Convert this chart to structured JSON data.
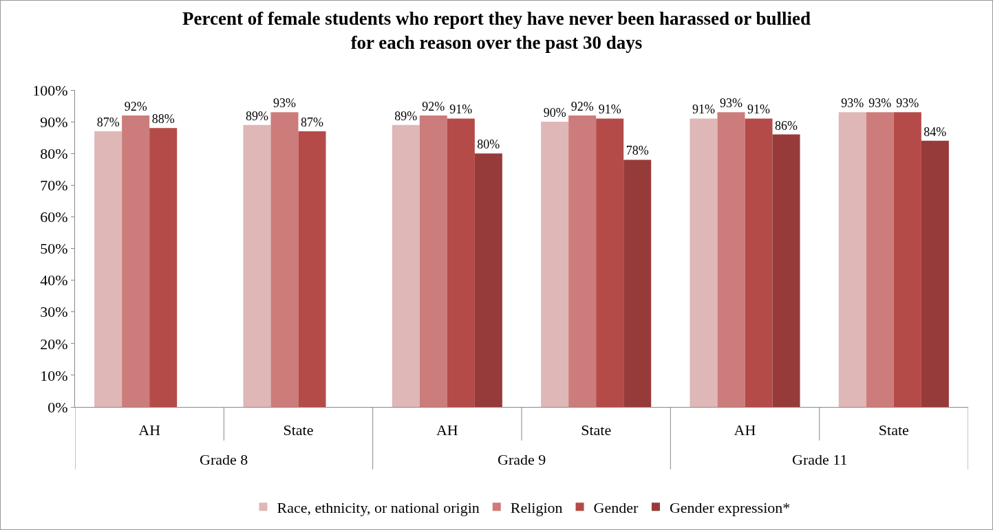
{
  "chart_data": {
    "type": "bar",
    "title": "Percent of female students who report they have never been harassed or bullied\nfor each reason over the past 30 days",
    "categories": [
      "AH",
      "State",
      "AH",
      "State",
      "AH",
      "State"
    ],
    "annotations": [
      "Grade 8",
      "Grade 9",
      "Grade 11"
    ],
    "series": [
      {
        "name": "Race, ethnicity, or national origin",
        "color": "#dfb7b7",
        "values": [
          87,
          89,
          89,
          90,
          91,
          93
        ],
        "value_labels": [
          "87%",
          "89%",
          "89%",
          "90%",
          "91%",
          "93%"
        ]
      },
      {
        "name": "Religion",
        "color": "#cc7c7a",
        "values": [
          92,
          93,
          92,
          92,
          93,
          93
        ],
        "value_labels": [
          "92%",
          "93%",
          "92%",
          "92%",
          "93%",
          "93%"
        ]
      },
      {
        "name": "Gender",
        "color": "#b44b48",
        "values": [
          88,
          87,
          91,
          91,
          91,
          93
        ],
        "value_labels": [
          "88%",
          "87%",
          "91%",
          "91%",
          "91%",
          "93%"
        ]
      },
      {
        "name": "Gender expression*",
        "color": "#973b3a",
        "values": [
          null,
          null,
          80,
          78,
          86,
          84
        ],
        "value_labels": [
          null,
          null,
          "80%",
          "78%",
          "86%",
          "84%"
        ]
      }
    ],
    "ylim": [
      0,
      100
    ],
    "yticks": [
      {
        "value": 0,
        "label": "0%"
      },
      {
        "value": 10,
        "label": "10%"
      },
      {
        "value": 20,
        "label": "20%"
      },
      {
        "value": 30,
        "label": "30%"
      },
      {
        "value": 40,
        "label": "40%"
      },
      {
        "value": 50,
        "label": "50%"
      },
      {
        "value": 60,
        "label": "60%"
      },
      {
        "value": 70,
        "label": "70%"
      },
      {
        "value": 80,
        "label": "80%"
      },
      {
        "value": 90,
        "label": "90%"
      },
      {
        "value": 100,
        "label": "100%"
      }
    ],
    "grid": false,
    "legend": "bottom"
  }
}
